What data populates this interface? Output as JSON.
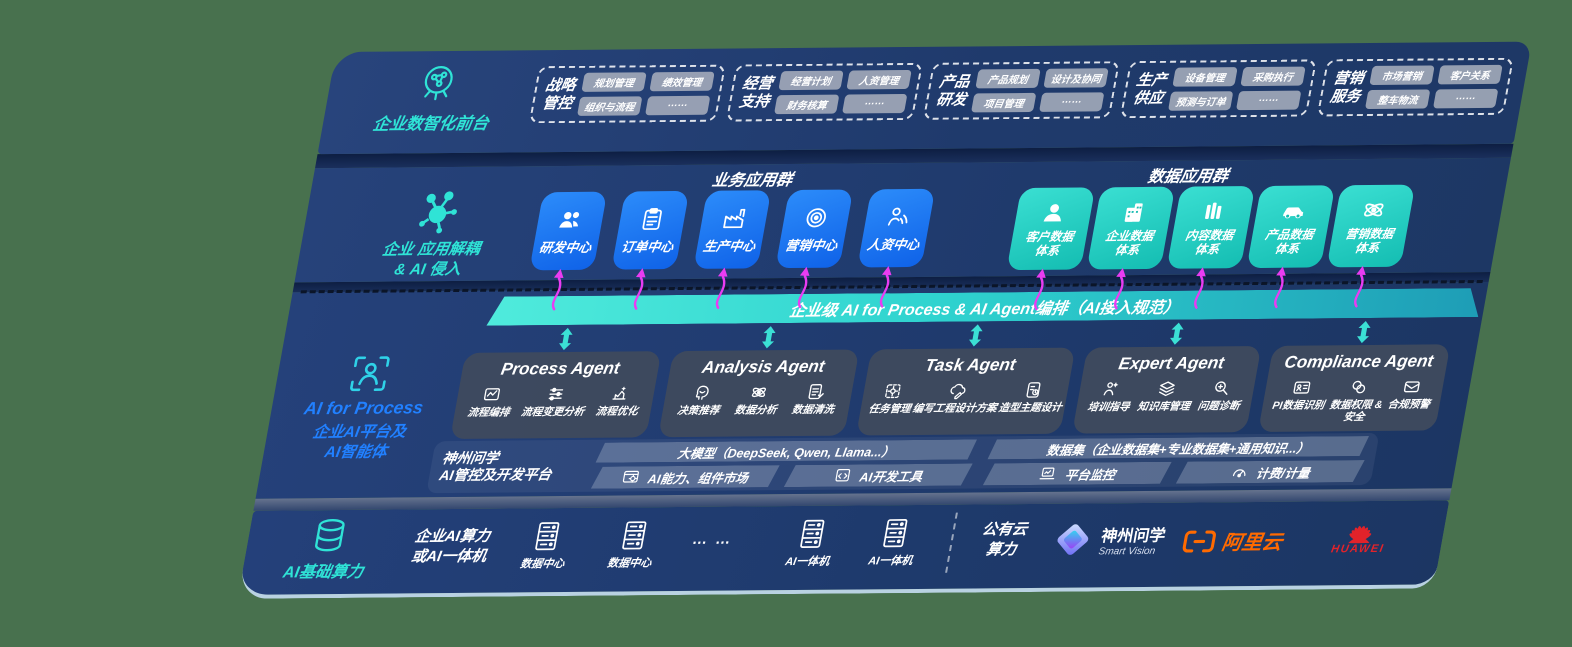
{
  "background": "#48714E",
  "colors": {
    "slab_navy": "#1F3A6C",
    "accent_teal": "#2FE3D6",
    "blue_box": "#1B7CF8",
    "teal_box": "#25CFC5",
    "magenta_arrow": "#E93CF2",
    "bar_gradient_start": "#4FEBDC",
    "bar_gradient_end": "#1E9DB6",
    "process_blue": "#2180FF",
    "ali_orange": "#FF6A00",
    "huawei_red": "#E2232A"
  },
  "layer1": {
    "icon": "brain-icon",
    "label": "企业数智化前台",
    "groups": [
      {
        "t1": "战略",
        "t2": "管控",
        "chips": [
          "规划管理",
          "绩效管理",
          "组织与流程",
          "……"
        ]
      },
      {
        "t1": "经营",
        "t2": "支持",
        "chips": [
          "经营计划",
          "人资管理",
          "财务核算",
          "……"
        ]
      },
      {
        "t1": "产品",
        "t2": "研发",
        "chips": [
          "产品规划",
          "设计及协同",
          "项目管理",
          "……"
        ]
      },
      {
        "t1": "生产",
        "t2": "供应",
        "chips": [
          "设备管理",
          "采购执行",
          "预测与订单",
          "……"
        ]
      },
      {
        "t1": "营销",
        "t2": "服务",
        "chips": [
          "市场营销",
          "客户关系",
          "整车物流",
          "……"
        ]
      }
    ]
  },
  "layer2": {
    "icon": "molecule-icon",
    "label1": "企业 应用解耦",
    "label2": "& AI 侵入",
    "business": {
      "title": "业务应用群",
      "boxes": [
        {
          "label": "研发中心",
          "icon": "people-icon"
        },
        {
          "label": "订单中心",
          "icon": "clipboard-icon"
        },
        {
          "label": "生产中心",
          "icon": "factory-icon"
        },
        {
          "label": "营销中心",
          "icon": "target-icon"
        },
        {
          "label": "人资中心",
          "icon": "person-wave-icon"
        }
      ]
    },
    "data": {
      "title": "数据应用群",
      "boxes": [
        {
          "l1": "客户数据",
          "l2": "体系",
          "icon": "person-icon"
        },
        {
          "l1": "企业数据",
          "l2": "体系",
          "icon": "building-icon"
        },
        {
          "l1": "内容数据",
          "l2": "体系",
          "icon": "content-icon"
        },
        {
          "l1": "产品数据",
          "l2": "体系",
          "icon": "car-icon"
        },
        {
          "l1": "营销数据",
          "l2": "体系",
          "icon": "atom-icon"
        }
      ]
    }
  },
  "layer3": {
    "icon": "scan-person-icon",
    "bar": "企业级 AI for Process & AI Agent编排（AI接入规范）",
    "label_en": "AI for Process",
    "label_cn1": "企业AI平台及",
    "label_cn2": "AI智能体",
    "agents": [
      {
        "title": "Process Agent",
        "items": [
          {
            "label": "流程编排",
            "icon": "workflow-icon"
          },
          {
            "label": "流程变更分析",
            "icon": "flow-analysis-icon"
          },
          {
            "label": "流程优化",
            "icon": "optimize-icon"
          }
        ]
      },
      {
        "title": "Analysis Agent",
        "items": [
          {
            "label": "决策推荐",
            "icon": "decision-icon"
          },
          {
            "label": "数据分析",
            "icon": "atom-small-icon"
          },
          {
            "label": "数据清洗",
            "icon": "data-clean-icon"
          }
        ]
      },
      {
        "title": "Task Agent",
        "items": [
          {
            "label": "任务管理",
            "icon": "task-grid-icon"
          },
          {
            "label": "编写工程设计方案",
            "icon": "cloud-edit-icon"
          },
          {
            "label": "造型主题设计",
            "icon": "design-doc-icon"
          }
        ]
      },
      {
        "title": "Expert Agent",
        "items": [
          {
            "label": "培训指导",
            "icon": "training-icon"
          },
          {
            "label": "知识库管理",
            "icon": "layers-icon"
          },
          {
            "label": "问题诊断",
            "icon": "diagnose-icon"
          }
        ]
      },
      {
        "title": "Compliance Agent",
        "items": [
          {
            "label": "PI数据识别",
            "icon": "id-card-icon"
          },
          {
            "label": "数据权限 &\n安全",
            "icon": "permission-icon"
          },
          {
            "label": "合规预警",
            "icon": "alert-mail-icon"
          }
        ]
      }
    ],
    "platform": {
      "label1": "神州问学",
      "label2": "AI管控及开发平台",
      "model_bar": "大模型（DeepSeek, Qwen, Llama...）",
      "model_cells": [
        {
          "label": "AI能力、组件市场",
          "icon": "market-icon"
        },
        {
          "label": "AI开发工具",
          "icon": "devtools-icon"
        }
      ],
      "data_bar": "数据集（企业数据集+专业数据集+通用知识...）",
      "data_cells": [
        {
          "label": "平台监控",
          "icon": "monitor-icon"
        },
        {
          "label": "计费/计量",
          "icon": "gauge-icon"
        }
      ]
    }
  },
  "layer4": {
    "icon": "database-icon",
    "label": "AI基础算力",
    "compute1": "企业AI算力",
    "compute2": "或AI一体机",
    "servers": [
      {
        "label": "数据中心",
        "icon": "server-icon"
      },
      {
        "label": "数据中心",
        "icon": "server-icon"
      },
      {
        "label": "AI一体机",
        "icon": "server-icon"
      },
      {
        "label": "AI一体机",
        "icon": "server-icon"
      }
    ],
    "dots": "… …",
    "cloud1": "公有云",
    "cloud2": "算力",
    "partners": {
      "smartvision": {
        "name": "神州问学",
        "sub": "Smart Vision",
        "icon": "diamond-logo-icon"
      },
      "alicloud": {
        "name": "阿里云",
        "icon": "ali-brackets-icon"
      },
      "huawei": {
        "name": "HUAWEI",
        "icon": "huawei-flower-icon"
      }
    }
  }
}
